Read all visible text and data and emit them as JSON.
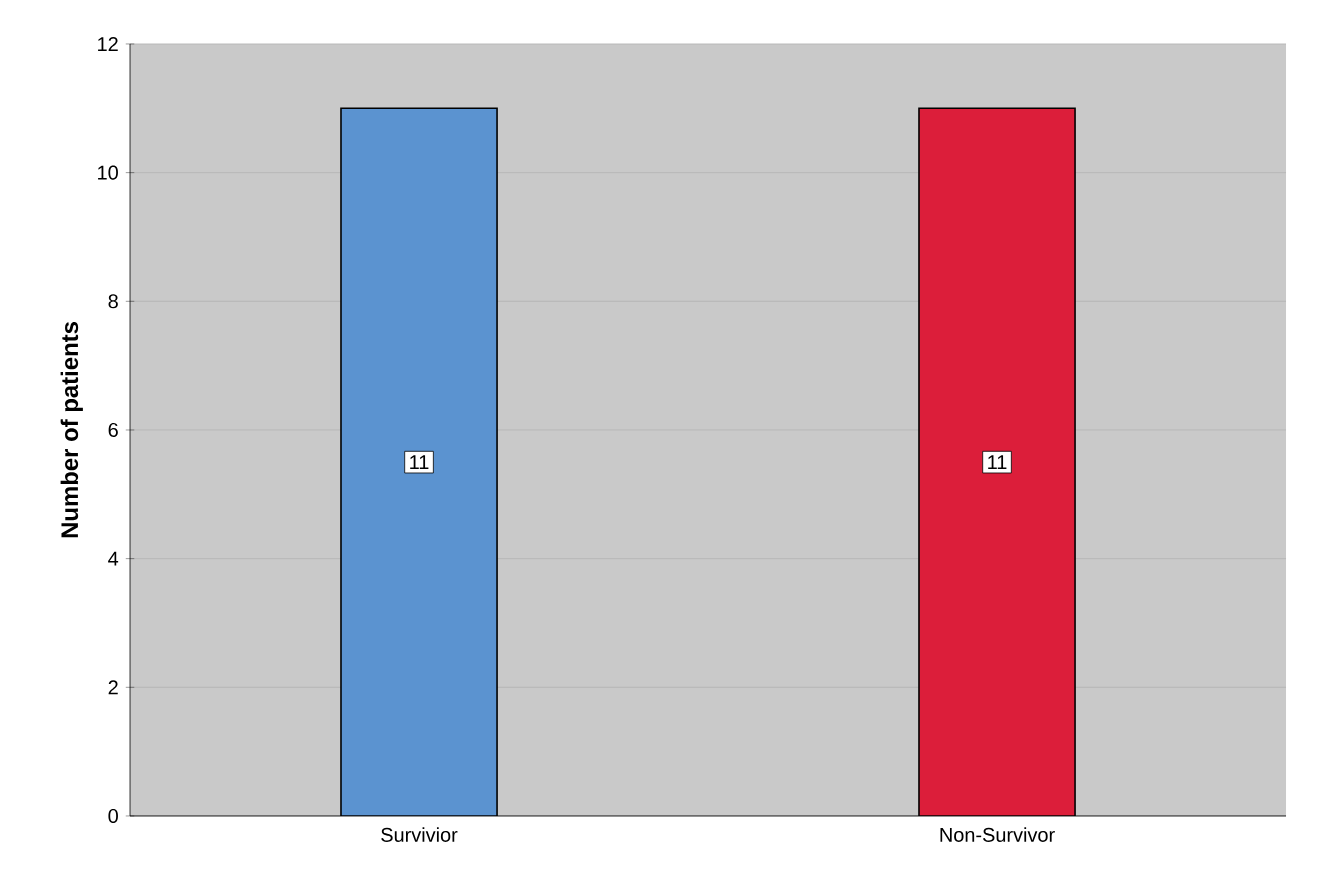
{
  "chart_data": {
    "type": "bar",
    "ylabel": "Number of patients",
    "categories": [
      "Survivior",
      "Non-Survivor"
    ],
    "values": [
      11,
      11
    ],
    "colors": [
      "#5b93d0",
      "#dc1e3a"
    ],
    "ylim": [
      0,
      12
    ],
    "yticks": [
      0,
      2,
      4,
      6,
      8,
      10,
      12
    ],
    "grid": "y",
    "data_labels": true
  }
}
